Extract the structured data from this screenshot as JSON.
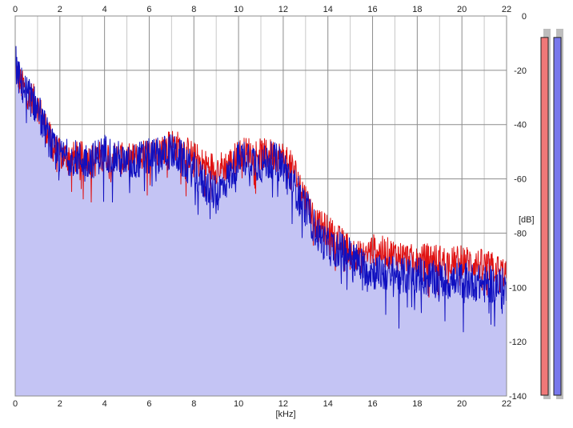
{
  "chart_data": {
    "type": "area",
    "xlabel": "[kHz]",
    "ylabel": "[dB]",
    "xlim": [
      0,
      22
    ],
    "ylim": [
      -140,
      0
    ],
    "x_ticks": [
      "0",
      "2",
      "4",
      "6",
      "8",
      "10",
      "12",
      "14",
      "16",
      "18",
      "20",
      "22"
    ],
    "y_ticks": [
      "0",
      "-20",
      "-40",
      "-60",
      "-80",
      "-100",
      "-120",
      "-140"
    ],
    "grid": true,
    "colors": {
      "background": "#ffffff",
      "fill": "#c4c4f4",
      "grid_major": "#8c8c8c",
      "grid_minor": "#c8c8c8",
      "left_channel": "#e01010",
      "right_channel": "#1010c0",
      "left_meter": "#f07878",
      "right_meter": "#7878ec"
    },
    "series": [
      {
        "x": [
          0,
          0.1,
          0.25,
          0.5,
          0.75,
          1,
          1.25,
          1.5,
          1.75,
          2,
          2.5,
          3,
          3.5,
          4,
          4.5,
          5,
          5.5,
          6,
          6.5,
          7,
          7.5,
          8,
          8.5,
          9,
          9.5,
          10,
          10.5,
          11,
          11.5,
          12,
          12.5,
          13,
          13.5,
          14,
          14.5,
          15,
          15.5,
          16,
          16.5,
          17,
          17.5,
          18,
          18.5,
          19,
          19.5,
          20,
          20.5,
          21,
          21.5,
          22
        ],
        "values": [
          -18,
          -22,
          -25,
          -28,
          -30,
          -33,
          -38,
          -44,
          -49,
          -51,
          -52,
          -52,
          -53,
          -51,
          -52,
          -53,
          -52,
          -51,
          -49,
          -47,
          -49,
          -52,
          -55,
          -56,
          -55,
          -51,
          -50,
          -51,
          -51,
          -52,
          -57,
          -67,
          -77,
          -79,
          -83,
          -86,
          -89,
          -86,
          -87,
          -88,
          -89,
          -91,
          -89,
          -90,
          -91,
          -90,
          -91,
          -92,
          -93,
          -95
        ]
      },
      {
        "x": [
          0,
          0.1,
          0.25,
          0.5,
          0.75,
          1,
          1.25,
          1.5,
          1.75,
          2,
          2.5,
          3,
          3.5,
          4,
          4.5,
          5,
          5.5,
          6,
          6.5,
          7,
          7.5,
          8,
          8.5,
          9,
          9.5,
          10,
          10.5,
          11,
          11.5,
          12,
          12.5,
          13,
          13.5,
          14,
          14.5,
          15,
          15.5,
          16,
          16.5,
          17,
          17.5,
          18,
          18.5,
          19,
          19.5,
          20,
          20.5,
          21,
          21.5,
          22
        ],
        "values": [
          -16,
          -21,
          -25,
          -28,
          -31,
          -34,
          -40,
          -45,
          -50,
          -52,
          -52,
          -53,
          -53,
          -50,
          -52,
          -55,
          -53,
          -52,
          -51,
          -50,
          -53,
          -57,
          -62,
          -66,
          -60,
          -53,
          -52,
          -55,
          -53,
          -55,
          -63,
          -70,
          -80,
          -85,
          -86,
          -88,
          -92,
          -94,
          -95,
          -95,
          -96,
          -95,
          -97,
          -97,
          -98,
          -97,
          -98,
          -99,
          -99,
          -100
        ]
      }
    ]
  },
  "meters": {
    "left_level": 0.97,
    "right_level": 0.97
  }
}
